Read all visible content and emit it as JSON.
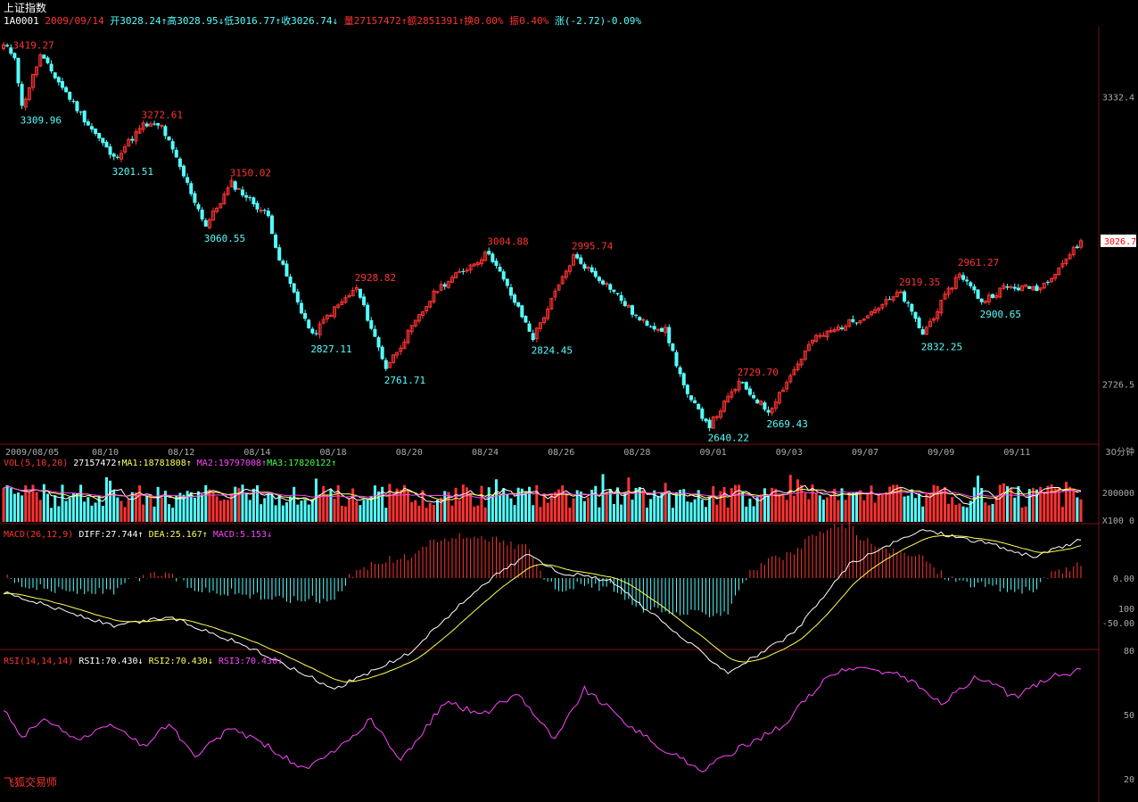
{
  "header": {
    "title": "上证指数",
    "code": "1A0001",
    "date": "2009/09/14",
    "open": "开3028.24↑",
    "high": "高3028.95↓",
    "low": "低3016.77↑",
    "close": "收3026.74↓",
    "volume": "量27157472↑",
    "amount": "额2851391↑",
    "turnover": "换0.00%",
    "amplitude": "振0.40%",
    "change": "涨(-2.72)-0.09%"
  },
  "brand": "飞狐交易师",
  "period_label": "30分钟",
  "price_tag": "3026.7",
  "indicators": {
    "vol": {
      "name": "VOL(5,10,20)",
      "value": "27157472↑",
      "ma1": "MA1:18781808↑",
      "ma2": "MA2:19797008↑",
      "ma3": "MA3:17820122↑"
    },
    "macd": {
      "name": "MACD(26,12,9)",
      "diff": "DIFF:27.744↑",
      "dea": "DEA:25.167↑",
      "macd": "MACD:5.153↓"
    },
    "rsi": {
      "name": "RSI(14,14,14)",
      "rsi1": "RSI1:70.430↓",
      "rsi2": "RSI2:70.430↓",
      "rsi3": "RSI3:70.430↓"
    }
  },
  "colors": {
    "up": "#ff3333",
    "down": "#55ffff",
    "background": "#000000",
    "axis": "#7a1010",
    "diff": "#ffffff",
    "dea": "#ffff55",
    "rsi": "#ff44ff",
    "ma1": "#ffffff",
    "ma2": "#ffff55",
    "ma3": "#ff44ff"
  },
  "chart_data": {
    "type": "candlestick",
    "x_tick_labels": [
      "2009/08/05",
      "08/10",
      "08/12",
      "08/14",
      "08/18",
      "08/20",
      "08/24",
      "08/26",
      "08/28",
      "09/01",
      "09/03",
      "09/07",
      "09/09",
      "09/11"
    ],
    "price_axis_labels": [
      "3332.4",
      "2726.5"
    ],
    "price_ylim": [
      2600,
      3480
    ],
    "price_key_points": [
      {
        "i": 0,
        "v": 3440
      },
      {
        "i": 3,
        "v": 3419.27
      },
      {
        "i": 5,
        "v": 3309.96
      },
      {
        "i": 10,
        "v": 3419.27
      },
      {
        "i": 22,
        "v": 3285
      },
      {
        "i": 30,
        "v": 3201.51
      },
      {
        "i": 38,
        "v": 3272.61
      },
      {
        "i": 43,
        "v": 3270
      },
      {
        "i": 55,
        "v": 3060.55
      },
      {
        "i": 62,
        "v": 3150.02
      },
      {
        "i": 72,
        "v": 3080
      },
      {
        "i": 75,
        "v": 2990
      },
      {
        "i": 84,
        "v": 2827.11
      },
      {
        "i": 88,
        "v": 2870
      },
      {
        "i": 96,
        "v": 2928.82
      },
      {
        "i": 104,
        "v": 2761.71
      },
      {
        "i": 118,
        "v": 2928
      },
      {
        "i": 132,
        "v": 3004.88
      },
      {
        "i": 144,
        "v": 2824.45
      },
      {
        "i": 155,
        "v": 2995.74
      },
      {
        "i": 165,
        "v": 2930
      },
      {
        "i": 173,
        "v": 2860
      },
      {
        "i": 180,
        "v": 2840
      },
      {
        "i": 186,
        "v": 2700
      },
      {
        "i": 192,
        "v": 2640.22
      },
      {
        "i": 200,
        "v": 2729.7
      },
      {
        "i": 208,
        "v": 2669.43
      },
      {
        "i": 220,
        "v": 2820
      },
      {
        "i": 234,
        "v": 2870
      },
      {
        "i": 244,
        "v": 2919.35
      },
      {
        "i": 250,
        "v": 2832.25
      },
      {
        "i": 260,
        "v": 2961.27
      },
      {
        "i": 266,
        "v": 2900.65
      },
      {
        "i": 272,
        "v": 2930
      },
      {
        "i": 282,
        "v": 2930
      },
      {
        "i": 293,
        "v": 3026.74
      }
    ],
    "price_annotations": [
      {
        "text": "3419.27",
        "kind": "high",
        "i": 3,
        "v": 3419.27
      },
      {
        "text": "3309.96",
        "kind": "low",
        "i": 5,
        "v": 3309.96
      },
      {
        "text": "3272.61",
        "kind": "high",
        "i": 38,
        "v": 3272.61
      },
      {
        "text": "3201.51",
        "kind": "low",
        "i": 30,
        "v": 3201.51
      },
      {
        "text": "3150.02",
        "kind": "high",
        "i": 62,
        "v": 3150.02
      },
      {
        "text": "3060.55",
        "kind": "low",
        "i": 55,
        "v": 3060.55
      },
      {
        "text": "2928.82",
        "kind": "high",
        "i": 96,
        "v": 2928.82
      },
      {
        "text": "2827.11",
        "kind": "low",
        "i": 84,
        "v": 2827.11
      },
      {
        "text": "2761.71",
        "kind": "low",
        "i": 104,
        "v": 2761.71
      },
      {
        "text": "3004.88",
        "kind": "high",
        "i": 132,
        "v": 3004.88
      },
      {
        "text": "2824.45",
        "kind": "low",
        "i": 144,
        "v": 2824.45
      },
      {
        "text": "2995.74",
        "kind": "high",
        "i": 155,
        "v": 2995.74
      },
      {
        "text": "2640.22",
        "kind": "low",
        "i": 192,
        "v": 2640.22
      },
      {
        "text": "2729.70",
        "kind": "high",
        "i": 200,
        "v": 2729.7
      },
      {
        "text": "2669.43",
        "kind": "low",
        "i": 208,
        "v": 2669.43
      },
      {
        "text": "2919.35",
        "kind": "high",
        "i": 244,
        "v": 2919.35
      },
      {
        "text": "2832.25",
        "kind": "low",
        "i": 250,
        "v": 2832.25
      },
      {
        "text": "2961.27",
        "kind": "high",
        "i": 260,
        "v": 2961.27
      },
      {
        "text": "2900.65",
        "kind": "low",
        "i": 266,
        "v": 2900.65
      }
    ],
    "vol_axis_labels": [
      "200000",
      "X100 0"
    ],
    "vol_ylim": [
      0,
      320000
    ],
    "macd_axis_labels": [
      "0.00",
      "100",
      "-50.00"
    ],
    "macd_ylim": [
      -90,
      60
    ],
    "macd_key_points": [
      {
        "i": 0,
        "v": -10
      },
      {
        "i": 30,
        "v": -35
      },
      {
        "i": 45,
        "v": -28
      },
      {
        "i": 65,
        "v": -48
      },
      {
        "i": 90,
        "v": -80
      },
      {
        "i": 110,
        "v": -55
      },
      {
        "i": 130,
        "v": -5
      },
      {
        "i": 143,
        "v": 18
      },
      {
        "i": 150,
        "v": 5
      },
      {
        "i": 165,
        "v": -2
      },
      {
        "i": 183,
        "v": -40
      },
      {
        "i": 197,
        "v": -68
      },
      {
        "i": 215,
        "v": -40
      },
      {
        "i": 230,
        "v": 10
      },
      {
        "i": 250,
        "v": 35
      },
      {
        "i": 268,
        "v": 25
      },
      {
        "i": 280,
        "v": 15
      },
      {
        "i": 293,
        "v": 27.744
      }
    ],
    "rsi_axis_labels": [
      "80",
      "50",
      "20"
    ],
    "rsi_ylim": [
      15,
      85
    ],
    "rsi_key_points": [
      {
        "i": 0,
        "v": 52
      },
      {
        "i": 5,
        "v": 40
      },
      {
        "i": 12,
        "v": 48
      },
      {
        "i": 20,
        "v": 38
      },
      {
        "i": 30,
        "v": 45
      },
      {
        "i": 38,
        "v": 35
      },
      {
        "i": 45,
        "v": 46
      },
      {
        "i": 52,
        "v": 30
      },
      {
        "i": 62,
        "v": 44
      },
      {
        "i": 72,
        "v": 35
      },
      {
        "i": 82,
        "v": 24
      },
      {
        "i": 92,
        "v": 35
      },
      {
        "i": 100,
        "v": 48
      },
      {
        "i": 108,
        "v": 28
      },
      {
        "i": 120,
        "v": 56
      },
      {
        "i": 130,
        "v": 50
      },
      {
        "i": 140,
        "v": 60
      },
      {
        "i": 150,
        "v": 38
      },
      {
        "i": 158,
        "v": 62
      },
      {
        "i": 168,
        "v": 48
      },
      {
        "i": 178,
        "v": 35
      },
      {
        "i": 190,
        "v": 24
      },
      {
        "i": 200,
        "v": 34
      },
      {
        "i": 212,
        "v": 45
      },
      {
        "i": 224,
        "v": 68
      },
      {
        "i": 232,
        "v": 72
      },
      {
        "i": 245,
        "v": 68
      },
      {
        "i": 255,
        "v": 55
      },
      {
        "i": 265,
        "v": 68
      },
      {
        "i": 275,
        "v": 58
      },
      {
        "i": 285,
        "v": 68
      },
      {
        "i": 293,
        "v": 70.43
      }
    ]
  }
}
